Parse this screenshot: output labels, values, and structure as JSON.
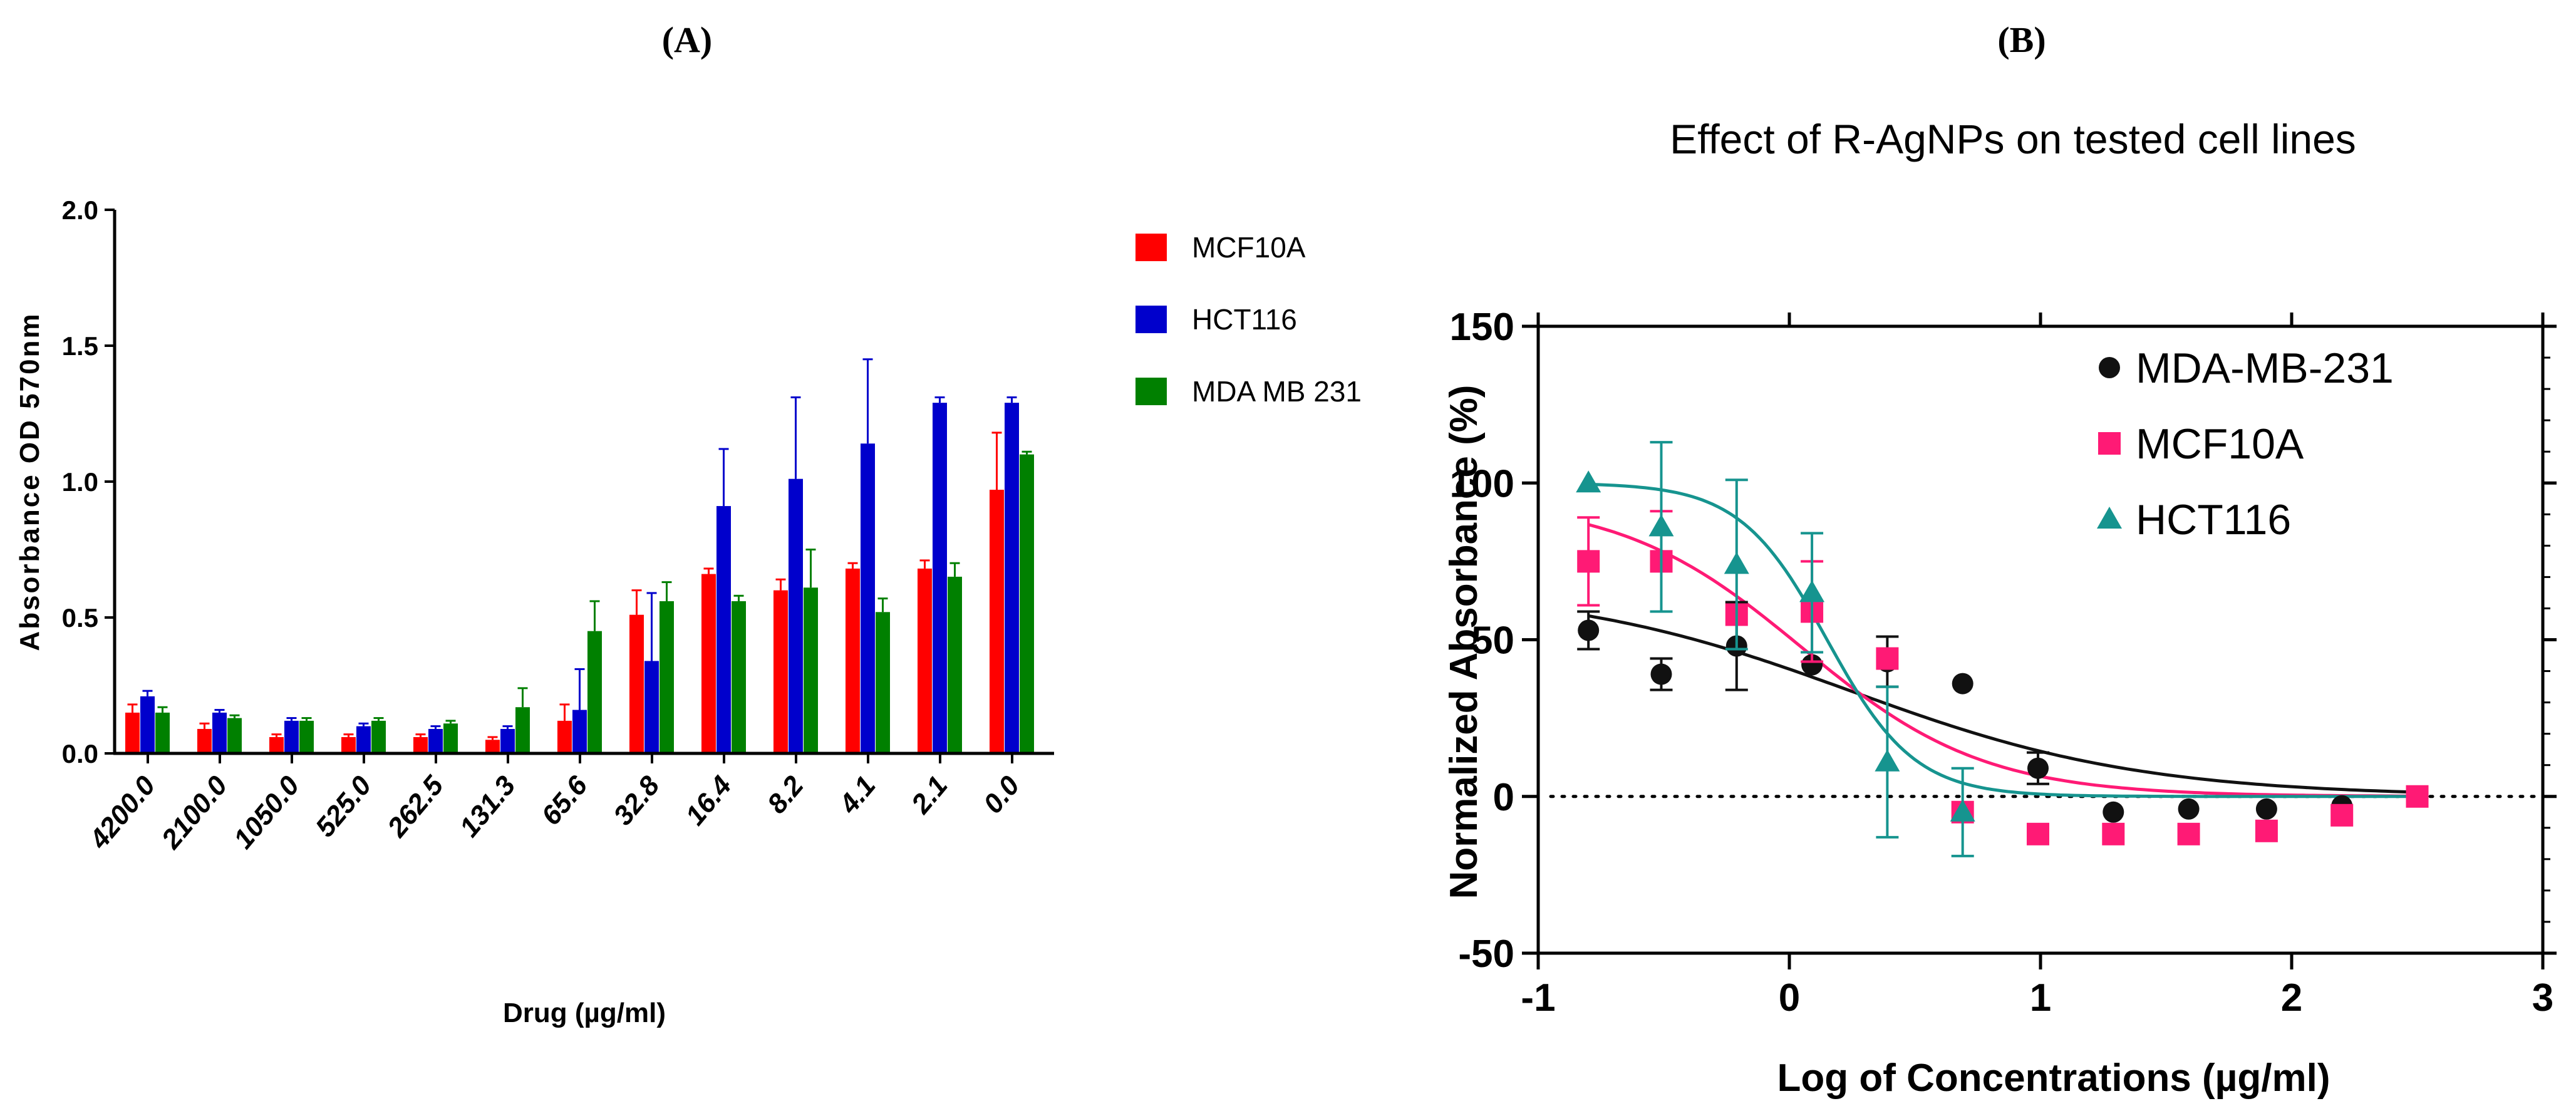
{
  "panel_labels": {
    "a": "(A)",
    "b": "(B)"
  },
  "chart_data": [
    {
      "type": "bar",
      "title": "",
      "xlabel": "Drug (µg/ml)",
      "ylabel": "Absorbance OD 570nm",
      "ylim": [
        0,
        2.0
      ],
      "yticks": [
        "0.0",
        "0.5",
        "1.0",
        "1.5",
        "2.0"
      ],
      "categories": [
        "4200.0",
        "2100.0",
        "1050.0",
        "525.0",
        "262.5",
        "131.3",
        "65.6",
        "32.8",
        "16.4",
        "8.2",
        "4.1",
        "2.1",
        "0.0"
      ],
      "legend_position": "top-right",
      "series": [
        {
          "name": "MCF10A",
          "color": "#ff0000",
          "values": [
            0.15,
            0.09,
            0.06,
            0.06,
            0.06,
            0.05,
            0.12,
            0.51,
            0.66,
            0.6,
            0.68,
            0.68,
            0.97
          ],
          "errors": [
            0.03,
            0.02,
            0.01,
            0.01,
            0.01,
            0.01,
            0.06,
            0.09,
            0.02,
            0.04,
            0.02,
            0.03,
            0.21
          ]
        },
        {
          "name": "HCT116",
          "color": "#0000cc",
          "values": [
            0.21,
            0.15,
            0.12,
            0.1,
            0.09,
            0.09,
            0.16,
            0.34,
            0.91,
            1.01,
            1.14,
            1.29,
            1.29
          ],
          "errors": [
            0.02,
            0.01,
            0.01,
            0.01,
            0.01,
            0.01,
            0.15,
            0.25,
            0.21,
            0.3,
            0.31,
            0.02,
            0.02
          ]
        },
        {
          "name": "MDA MB 231",
          "color": "#008000",
          "values": [
            0.15,
            0.13,
            0.12,
            0.12,
            0.11,
            0.17,
            0.45,
            0.56,
            0.56,
            0.61,
            0.52,
            0.65,
            1.1
          ],
          "errors": [
            0.02,
            0.01,
            0.01,
            0.01,
            0.01,
            0.07,
            0.11,
            0.07,
            0.02,
            0.14,
            0.05,
            0.05,
            0.01
          ]
        }
      ]
    },
    {
      "type": "scatter",
      "title": "Effect of R-AgNPs on tested cell lines",
      "xlabel": "Log of Concentrations (µg/ml)",
      "ylabel": "Normalized Absorbance (%)",
      "xlim": [
        -1,
        3
      ],
      "ylim": [
        -50,
        150
      ],
      "xticks": [
        -1,
        0,
        1,
        2,
        3
      ],
      "yticks": [
        -50,
        0,
        50,
        100,
        150
      ],
      "reference_line_y": 0,
      "legend_position": "top-right",
      "series": [
        {
          "name": "MDA-MB-231",
          "marker": "circle",
          "color": "#111111",
          "x": [
            -0.8,
            -0.51,
            -0.21,
            0.09,
            0.39,
            0.69,
            0.99,
            1.29,
            1.59,
            1.9,
            2.2,
            2.5
          ],
          "y": [
            53,
            39,
            48,
            42,
            43,
            36,
            9,
            -5,
            -4,
            -4,
            -3,
            0
          ],
          "err": [
            6,
            5,
            14,
            0,
            8,
            0,
            5,
            0,
            0,
            0,
            0,
            0
          ],
          "fit": {
            "top": 67,
            "bottom": 0,
            "logEC50": 0.25,
            "hill": 0.75
          }
        },
        {
          "name": "MCF10A",
          "marker": "square",
          "color": "#ff1a75",
          "x": [
            -0.8,
            -0.51,
            -0.21,
            0.09,
            0.39,
            0.69,
            0.99,
            1.29,
            1.59,
            1.9,
            2.2,
            2.5
          ],
          "y": [
            75,
            75,
            58,
            59,
            44,
            -5,
            -12,
            -12,
            -12,
            -11,
            -6,
            0
          ],
          "err": [
            14,
            16,
            0,
            16,
            0,
            0,
            0,
            0,
            0,
            0,
            0,
            0
          ],
          "fit": {
            "top": 95,
            "bottom": 0,
            "logEC50": 0.05,
            "hill": 1.2
          }
        },
        {
          "name": "HCT116",
          "marker": "triangle",
          "color": "#16948f",
          "x": [
            -0.8,
            -0.51,
            -0.21,
            0.09,
            0.39,
            0.69
          ],
          "y": [
            100,
            86,
            74,
            65,
            11,
            -5
          ],
          "err": [
            0,
            27,
            27,
            19,
            24,
            14
          ],
          "fit": {
            "top": 100,
            "bottom": 0,
            "logEC50": 0.15,
            "hill": 2.5
          }
        }
      ]
    }
  ]
}
